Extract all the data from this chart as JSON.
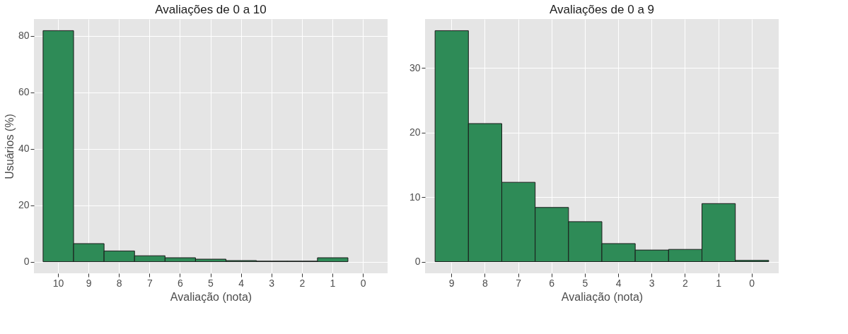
{
  "chart_data": [
    {
      "type": "bar",
      "title": "Avaliações de 0 a 10",
      "xlabel": "Avaliação (nota)",
      "ylabel": "Usuários (%)",
      "categories": [
        "10",
        "9",
        "8",
        "7",
        "6",
        "5",
        "4",
        "3",
        "2",
        "1",
        "0"
      ],
      "values": [
        81.8,
        6.4,
        3.8,
        2.1,
        1.4,
        0.9,
        0.4,
        0.2,
        0.2,
        1.4,
        null
      ],
      "color": "#2e8b57",
      "ylim": [
        -4.1,
        85.9
      ],
      "yticks": [
        0,
        20,
        40,
        60,
        80
      ],
      "grid": true
    },
    {
      "type": "bar",
      "title": "Avaliações de 0 a 9",
      "xlabel": "Avaliação (nota)",
      "categories": [
        "9",
        "8",
        "7",
        "6",
        "5",
        "4",
        "3",
        "2",
        "1",
        "0"
      ],
      "values": [
        35.8,
        21.4,
        12.3,
        8.4,
        6.2,
        2.8,
        1.8,
        1.9,
        9.0,
        0.2
      ],
      "color": "#2e8b57",
      "ylim": [
        -1.8,
        37.6
      ],
      "yticks": [
        0,
        10,
        20,
        30
      ],
      "grid": true
    }
  ]
}
